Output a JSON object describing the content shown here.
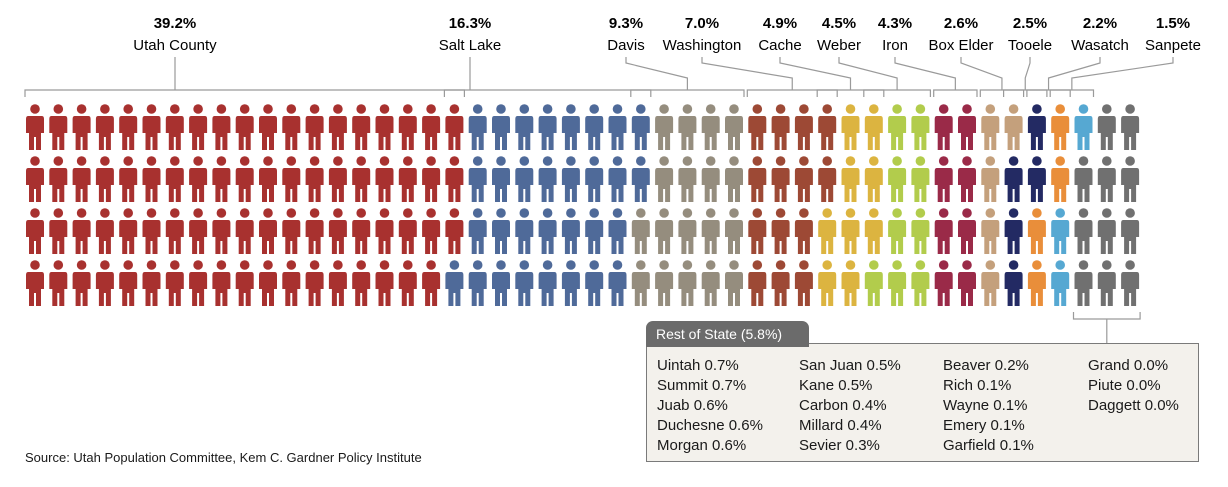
{
  "chart_data": {
    "type": "pictogram",
    "title": "",
    "total_icons": 192,
    "series": [
      {
        "name": "Utah County",
        "pct": "39.2%",
        "value": 39.2,
        "color": "#a8312f"
      },
      {
        "name": "Salt Lake",
        "pct": "16.3%",
        "value": 16.3,
        "color": "#4f6a99"
      },
      {
        "name": "Davis",
        "pct": "9.3%",
        "value": 9.3,
        "color": "#958d7e"
      },
      {
        "name": "Washington",
        "pct": "7.0%",
        "value": 7.0,
        "color": "#9d4935"
      },
      {
        "name": "Cache",
        "pct": "4.9%",
        "value": 4.9,
        "color": "#dcb440"
      },
      {
        "name": "Weber",
        "pct": "4.5%",
        "value": 4.5,
        "color": "#b2cc4c"
      },
      {
        "name": "Iron",
        "pct": "4.3%",
        "value": 4.3,
        "color": "#9a2a48"
      },
      {
        "name": "Box Elder",
        "pct": "2.6%",
        "value": 2.6,
        "color": "#c4a07c"
      },
      {
        "name": "Tooele",
        "pct": "2.5%",
        "value": 2.5,
        "color": "#232a63"
      },
      {
        "name": "Wasatch",
        "pct": "2.2%",
        "value": 2.2,
        "color": "#e98e3a"
      },
      {
        "name": "Sanpete",
        "pct": "1.5%",
        "value": 1.5,
        "color": "#56a8d2"
      },
      {
        "name": "Rest of State",
        "pct": "5.8%",
        "value": 5.8,
        "color": "#707070"
      }
    ]
  },
  "rest_of_state": {
    "title": "Rest of State (5.8%)",
    "columns": [
      [
        "Uintah 0.7%",
        "Summit 0.7%",
        "Juab 0.6%",
        "Duchesne 0.6%",
        "Morgan 0.6%"
      ],
      [
        "San Juan 0.5%",
        "Kane 0.5%",
        "Carbon 0.4%",
        "Millard 0.4%",
        "Sevier 0.3%"
      ],
      [
        "Beaver 0.2%",
        "Rich 0.1%",
        "Wayne 0.1%",
        "Emery 0.1%",
        "Garfield 0.1%"
      ],
      [
        "Grand 0.0%",
        "Piute 0.0%",
        "Daggett 0.0%"
      ]
    ]
  },
  "source": "Source: Utah Population Committee,  Kem C. Gardner Policy Institute"
}
